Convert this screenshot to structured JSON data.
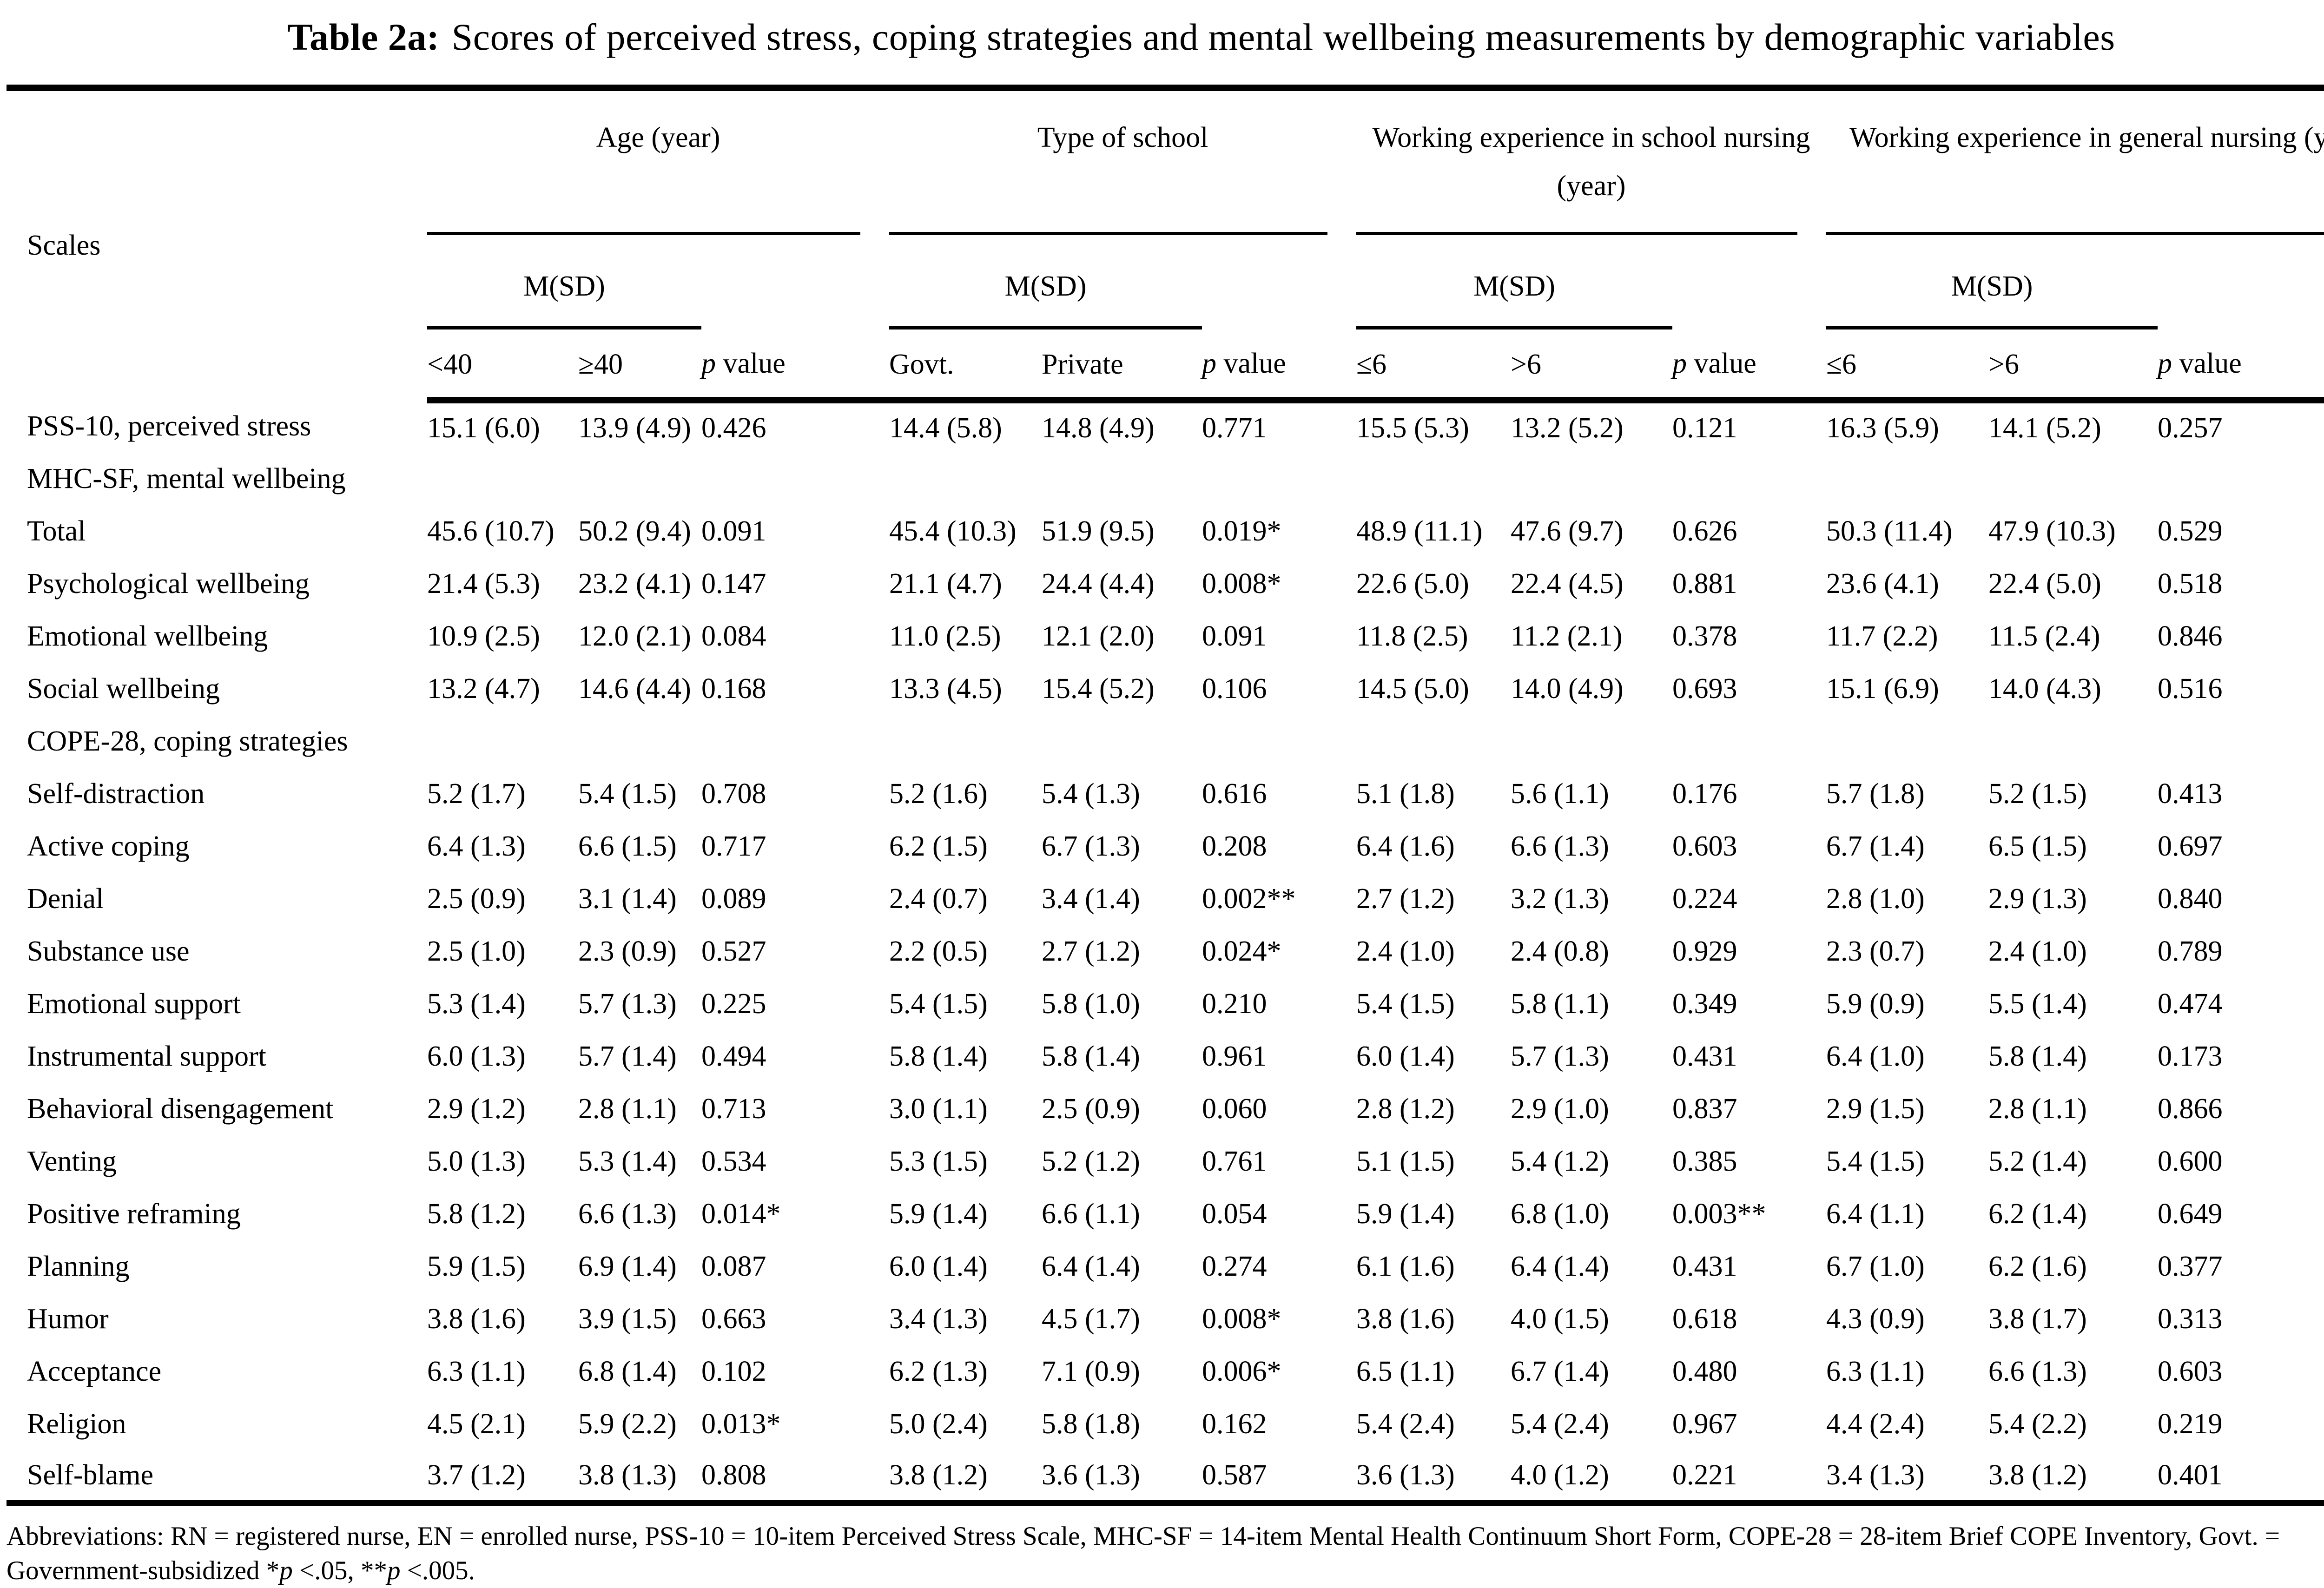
{
  "title": {
    "label": "Table 2a:",
    "text": "Scores of perceived stress, coping strategies and mental wellbeing measurements by demographic variables"
  },
  "header": {
    "scales_label": "Scales",
    "msd_label": "M(SD)",
    "p_label": "p",
    "value_label": " value",
    "groups": [
      {
        "title": "Age (year)",
        "col1": "<40",
        "col2": "≥40"
      },
      {
        "title": "Type of school",
        "col1": "Govt.",
        "col2": "Private"
      },
      {
        "title": "Working experience in school nursing (year)",
        "col1": "≤6",
        "col2": ">6"
      },
      {
        "title": "Working experience in general nursing (year)",
        "col1": "≤6",
        "col2": ">6"
      }
    ]
  },
  "rows": [
    {
      "scale": "PSS-10, perceived stress",
      "section": false,
      "values": [
        "15.1 (6.0)",
        "13.9 (4.9)",
        "0.426",
        "14.4 (5.8)",
        "14.8 (4.9)",
        "0.771",
        "15.5 (5.3)",
        "13.2 (5.2)",
        "0.121",
        "16.3 (5.9)",
        "14.1 (5.2)",
        "0.257"
      ]
    },
    {
      "scale": "MHC-SF, mental wellbeing",
      "section": true,
      "values": []
    },
    {
      "scale": "Total",
      "section": false,
      "values": [
        "45.6 (10.7)",
        "50.2 (9.4)",
        "0.091",
        "45.4 (10.3)",
        "51.9 (9.5)",
        "0.019*",
        "48.9 (11.1)",
        "47.6 (9.7)",
        "0.626",
        "50.3 (11.4)",
        "47.9 (10.3)",
        "0.529"
      ]
    },
    {
      "scale": "Psychological wellbeing",
      "section": false,
      "values": [
        "21.4 (5.3)",
        "23.2 (4.1)",
        "0.147",
        "21.1 (4.7)",
        "24.4 (4.4)",
        "0.008*",
        "22.6 (5.0)",
        "22.4 (4.5)",
        "0.881",
        "23.6 (4.1)",
        "22.4 (5.0)",
        "0.518"
      ]
    },
    {
      "scale": "Emotional wellbeing",
      "section": false,
      "values": [
        "10.9 (2.5)",
        "12.0 (2.1)",
        "0.084",
        "11.0 (2.5)",
        "12.1 (2.0)",
        "0.091",
        "11.8 (2.5)",
        "11.2 (2.1)",
        "0.378",
        "11.7 (2.2)",
        "11.5 (2.4)",
        "0.846"
      ]
    },
    {
      "scale": "Social wellbeing",
      "section": false,
      "values": [
        "13.2 (4.7)",
        "14.6 (4.4)",
        "0.168",
        "13.3 (4.5)",
        "15.4 (5.2)",
        "0.106",
        "14.5 (5.0)",
        "14.0 (4.9)",
        "0.693",
        "15.1 (6.9)",
        "14.0 (4.3)",
        "0.516"
      ]
    },
    {
      "scale": "COPE-28, coping strategies",
      "section": true,
      "values": []
    },
    {
      "scale": "Self-distraction",
      "section": false,
      "values": [
        "5.2 (1.7)",
        "5.4 (1.5)",
        "0.708",
        "5.2 (1.6)",
        "5.4 (1.3)",
        "0.616",
        "5.1 (1.8)",
        "5.6 (1.1)",
        "0.176",
        "5.7 (1.8)",
        "5.2 (1.5)",
        "0.413"
      ]
    },
    {
      "scale": "Active coping",
      "section": false,
      "values": [
        "6.4 (1.3)",
        "6.6 (1.5)",
        "0.717",
        "6.2 (1.5)",
        "6.7 (1.3)",
        "0.208",
        "6.4 (1.6)",
        "6.6 (1.3)",
        "0.603",
        "6.7 (1.4)",
        "6.5 (1.5)",
        "0.697"
      ]
    },
    {
      "scale": "Denial",
      "section": false,
      "values": [
        "2.5 (0.9)",
        "3.1 (1.4)",
        "0.089",
        "2.4 (0.7)",
        "3.4 (1.4)",
        "0.002**",
        "2.7 (1.2)",
        "3.2 (1.3)",
        "0.224",
        "2.8 (1.0)",
        "2.9 (1.3)",
        "0.840"
      ]
    },
    {
      "scale": "Substance use",
      "section": false,
      "values": [
        "2.5 (1.0)",
        "2.3 (0.9)",
        "0.527",
        "2.2 (0.5)",
        "2.7 (1.2)",
        "0.024*",
        "2.4 (1.0)",
        "2.4 (0.8)",
        "0.929",
        "2.3 (0.7)",
        "2.4 (1.0)",
        "0.789"
      ]
    },
    {
      "scale": "Emotional support",
      "section": false,
      "values": [
        "5.3 (1.4)",
        "5.7 (1.3)",
        "0.225",
        "5.4 (1.5)",
        "5.8 (1.0)",
        "0.210",
        "5.4 (1.5)",
        "5.8 (1.1)",
        "0.349",
        "5.9 (0.9)",
        "5.5 (1.4)",
        "0.474"
      ]
    },
    {
      "scale": "Instrumental support",
      "section": false,
      "values": [
        "6.0 (1.3)",
        "5.7 (1.4)",
        "0.494",
        "5.8 (1.4)",
        "5.8 (1.4)",
        "0.961",
        "6.0 (1.4)",
        "5.7 (1.3)",
        "0.431",
        "6.4 (1.0)",
        "5.8 (1.4)",
        "0.173"
      ]
    },
    {
      "scale": "Behavioral disengagement",
      "section": false,
      "values": [
        "2.9 (1.2)",
        "2.8 (1.1)",
        "0.713",
        "3.0 (1.1)",
        "2.5 (0.9)",
        "0.060",
        "2.8 (1.2)",
        "2.9 (1.0)",
        "0.837",
        "2.9 (1.5)",
        "2.8 (1.1)",
        "0.866"
      ]
    },
    {
      "scale": "Venting",
      "section": false,
      "values": [
        "5.0 (1.3)",
        "5.3 (1.4)",
        "0.534",
        "5.3 (1.5)",
        "5.2 (1.2)",
        "0.761",
        "5.1 (1.5)",
        "5.4 (1.2)",
        "0.385",
        "5.4 (1.5)",
        "5.2 (1.4)",
        "0.600"
      ]
    },
    {
      "scale": "Positive reframing",
      "section": false,
      "values": [
        "5.8 (1.2)",
        "6.6 (1.3)",
        "0.014*",
        "5.9 (1.4)",
        "6.6 (1.1)",
        "0.054",
        "5.9 (1.4)",
        "6.8 (1.0)",
        "0.003**",
        "6.4 (1.1)",
        "6.2 (1.4)",
        "0.649"
      ]
    },
    {
      "scale": "Planning",
      "section": false,
      "values": [
        "5.9 (1.5)",
        "6.9 (1.4)",
        "0.087",
        "6.0 (1.4)",
        "6.4 (1.4)",
        "0.274",
        "6.1 (1.6)",
        "6.4 (1.4)",
        "0.431",
        "6.7 (1.0)",
        "6.2 (1.6)",
        "0.377"
      ]
    },
    {
      "scale": "Humor",
      "section": false,
      "values": [
        "3.8 (1.6)",
        "3.9 (1.5)",
        "0.663",
        "3.4 (1.3)",
        "4.5 (1.7)",
        "0.008*",
        "3.8 (1.6)",
        "4.0 (1.5)",
        "0.618",
        "4.3 (0.9)",
        "3.8 (1.7)",
        "0.313"
      ]
    },
    {
      "scale": "Acceptance",
      "section": false,
      "values": [
        "6.3 (1.1)",
        "6.8 (1.4)",
        "0.102",
        "6.2 (1.3)",
        "7.1 (0.9)",
        "0.006*",
        "6.5 (1.1)",
        "6.7 (1.4)",
        "0.480",
        "6.3 (1.1)",
        "6.6 (1.3)",
        "0.603"
      ]
    },
    {
      "scale": "Religion",
      "section": false,
      "values": [
        "4.5 (2.1)",
        "5.9 (2.2)",
        "0.013*",
        "5.0 (2.4)",
        "5.8 (1.8)",
        "0.162",
        "5.4 (2.4)",
        "5.4 (2.4)",
        "0.967",
        "4.4 (2.4)",
        "5.4 (2.2)",
        "0.219"
      ]
    },
    {
      "scale": "Self-blame",
      "section": false,
      "values": [
        "3.7 (1.2)",
        "3.8 (1.3)",
        "0.808",
        "3.8 (1.2)",
        "3.6 (1.3)",
        "0.587",
        "3.6 (1.3)",
        "4.0 (1.2)",
        "0.221",
        "3.4 (1.3)",
        "3.8 (1.2)",
        "0.401"
      ]
    }
  ],
  "footnote": {
    "main": "Abbreviations: RN = registered nurse, EN = enrolled nurse, PSS-10 = 10-item Perceived Stress Scale, MHC-SF = 14-item Mental Health Continuum Short Form, COPE-28 = 28-item Brief COPE Inventory, Govt. = Government-subsidized ",
    "sig1_star": "*",
    "sig1_p": "p",
    "sig1_rest": " <.05, ",
    "sig2_star": "**",
    "sig2_p": "p",
    "sig2_rest": " <.005."
  }
}
